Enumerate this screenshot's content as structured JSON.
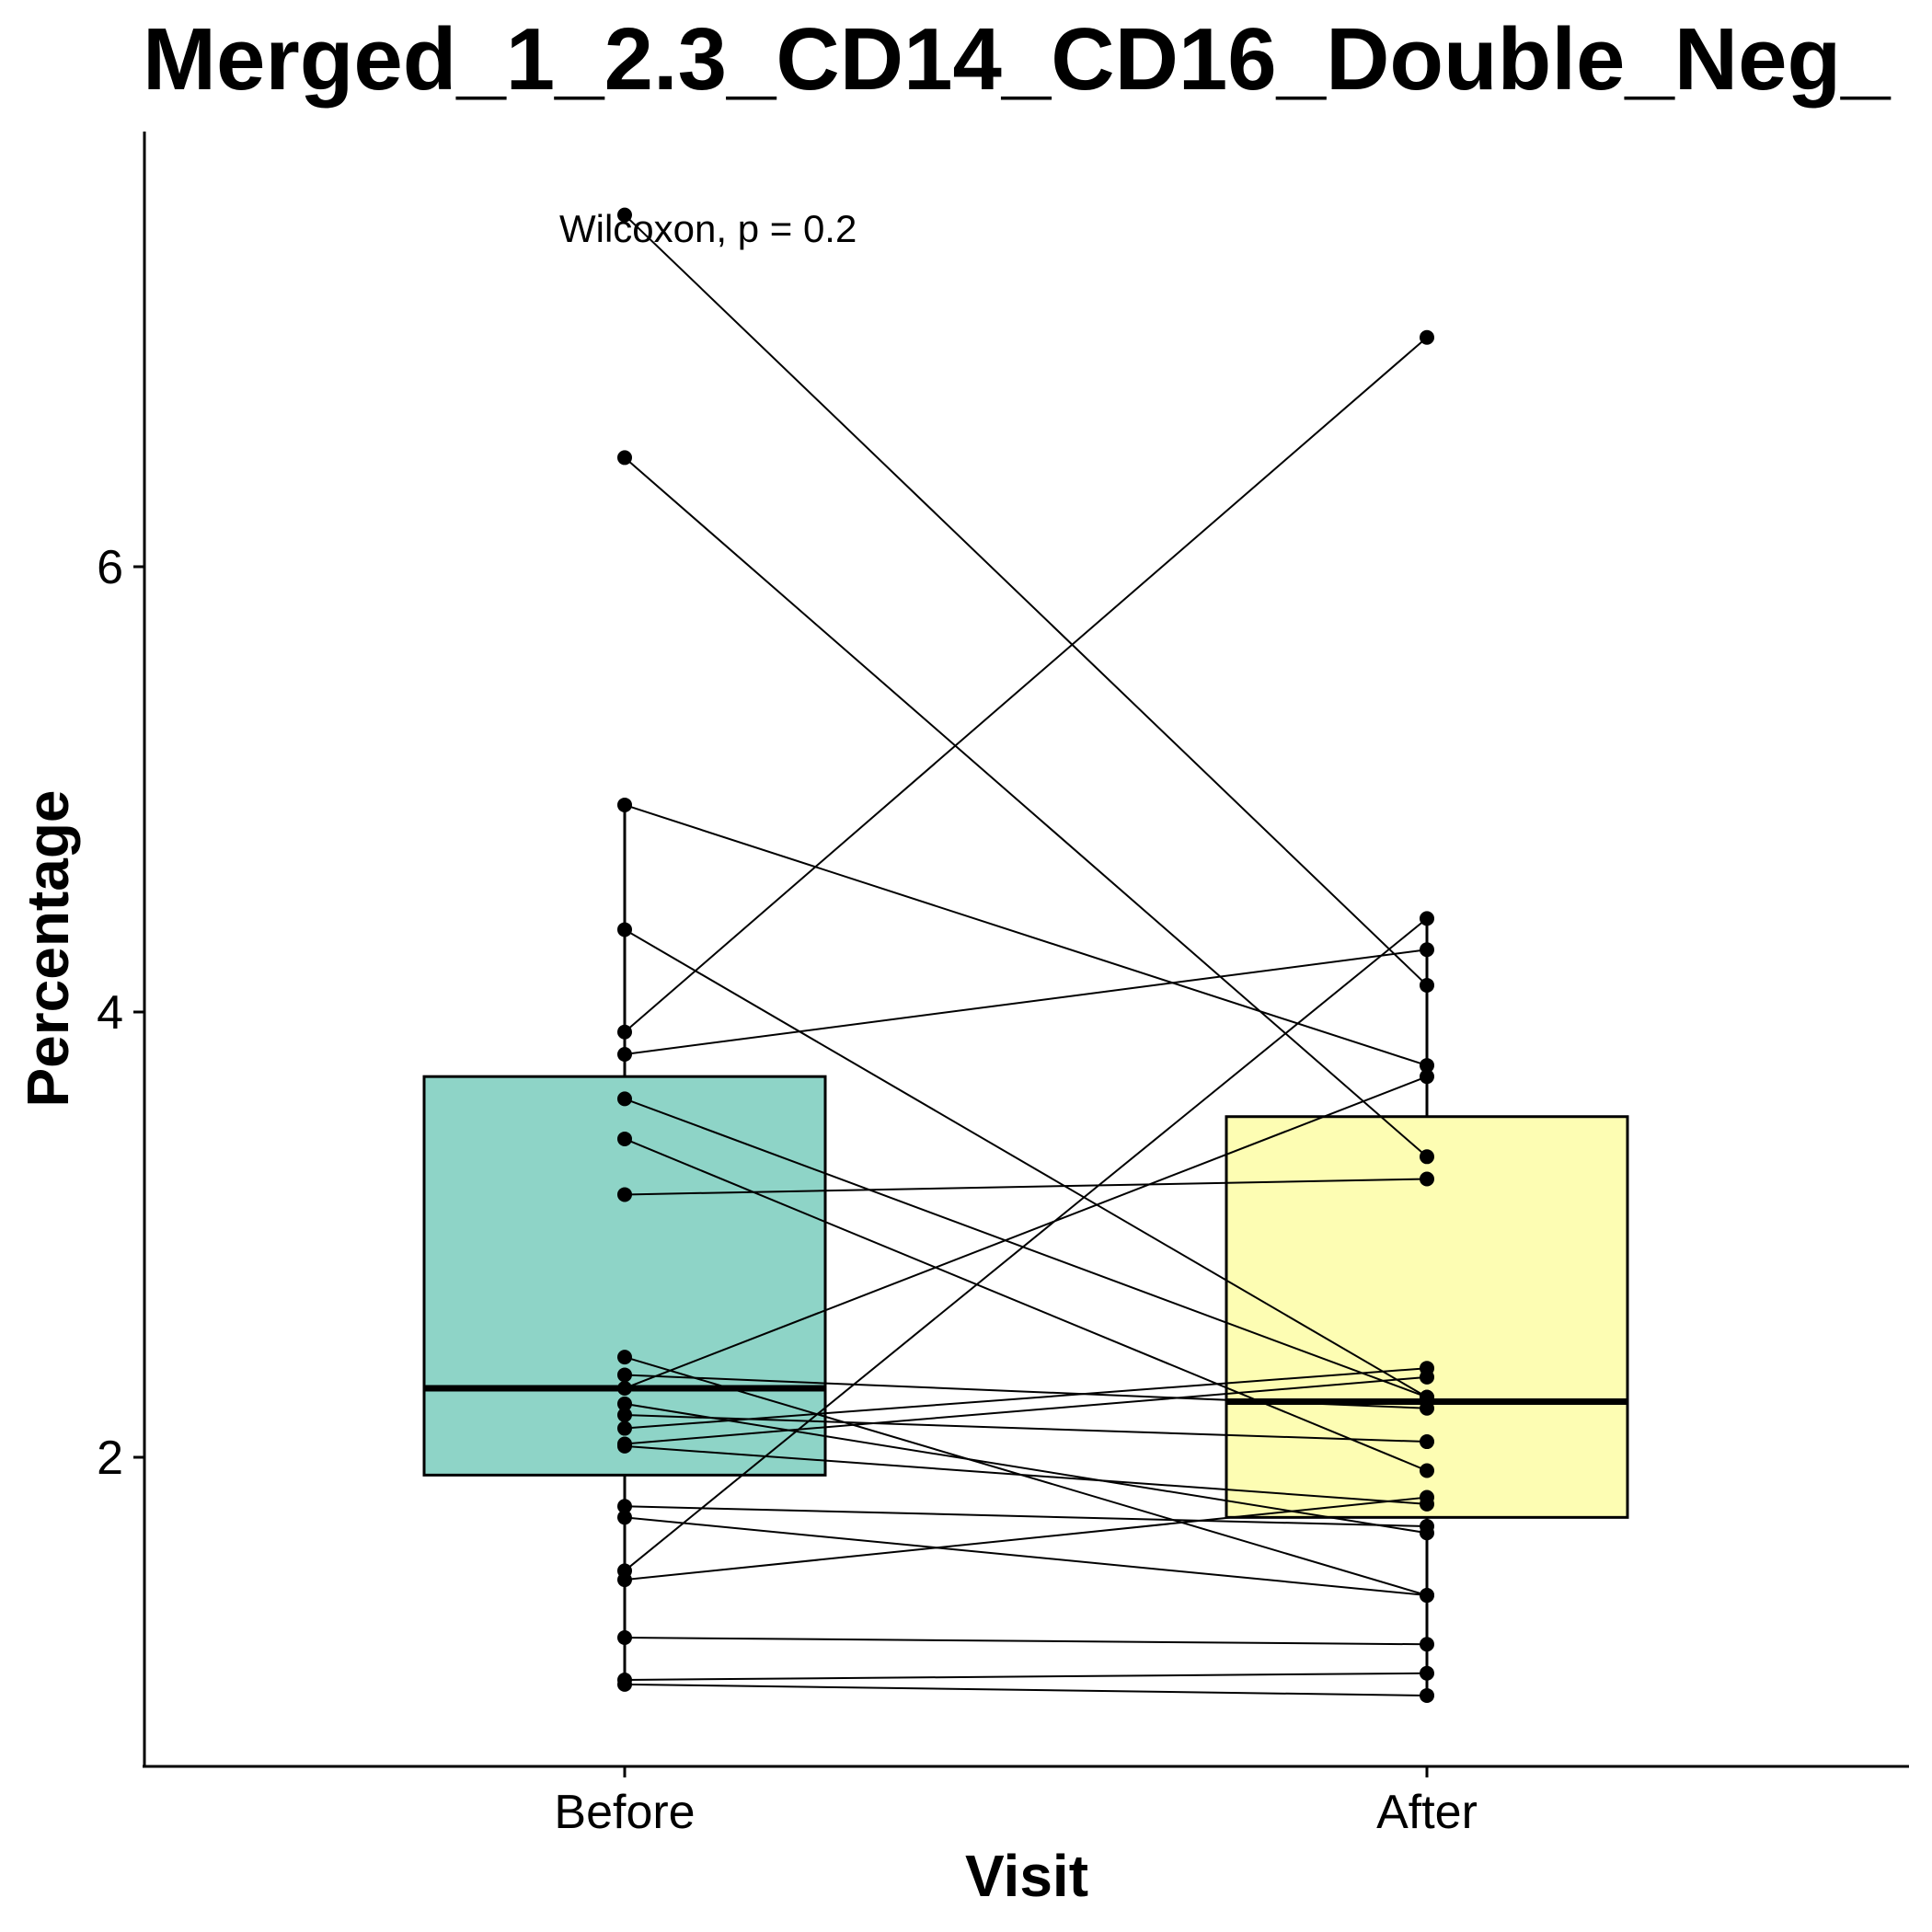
{
  "chart_data": {
    "type": "box",
    "title": "Merged_1_2.3_CD14_CD16_Double_Neg_",
    "xlabel": "Visit",
    "ylabel": "Percentage",
    "categories": [
      "Before",
      "After"
    ],
    "ylim": [
      0.6,
      7.9
    ],
    "yticks": [
      2,
      4,
      6
    ],
    "annotation": "Wilcoxon, p = 0.2",
    "colors": {
      "Before": "#8ed4c7",
      "After": "#fdfdb3",
      "stroke": "#000000",
      "points": "#000000"
    },
    "boxes": [
      {
        "category": "Before",
        "lower_whisker": 1.0,
        "q1": 1.92,
        "median": 2.31,
        "q3": 3.71,
        "upper_whisker": 4.93
      },
      {
        "category": "After",
        "lower_whisker": 0.93,
        "q1": 1.73,
        "median": 2.25,
        "q3": 3.53,
        "upper_whisker": 4.42
      }
    ],
    "pairs": [
      {
        "before": 7.58,
        "after": 4.12
      },
      {
        "before": 6.49,
        "after": 3.35
      },
      {
        "before": 4.93,
        "after": 3.76
      },
      {
        "before": 4.37,
        "after": 2.27
      },
      {
        "before": 3.91,
        "after": 7.03
      },
      {
        "before": 3.81,
        "after": 4.28
      },
      {
        "before": 3.61,
        "after": 2.27
      },
      {
        "before": 3.43,
        "after": 1.94
      },
      {
        "before": 3.18,
        "after": 3.25
      },
      {
        "before": 2.45,
        "after": 1.38
      },
      {
        "before": 2.37,
        "after": 2.22
      },
      {
        "before": 2.31,
        "after": 3.71
      },
      {
        "before": 2.24,
        "after": 1.66
      },
      {
        "before": 2.19,
        "after": 2.07
      },
      {
        "before": 2.13,
        "after": 2.4
      },
      {
        "before": 2.06,
        "after": 2.36
      },
      {
        "before": 2.05,
        "after": 1.79
      },
      {
        "before": 1.78,
        "after": 1.69
      },
      {
        "before": 1.73,
        "after": 1.38
      },
      {
        "before": 1.49,
        "after": 4.42
      },
      {
        "before": 1.45,
        "after": 1.82
      },
      {
        "before": 1.19,
        "after": 1.16
      },
      {
        "before": 1.0,
        "after": 1.03
      },
      {
        "before": 0.98,
        "after": 0.93
      }
    ]
  }
}
